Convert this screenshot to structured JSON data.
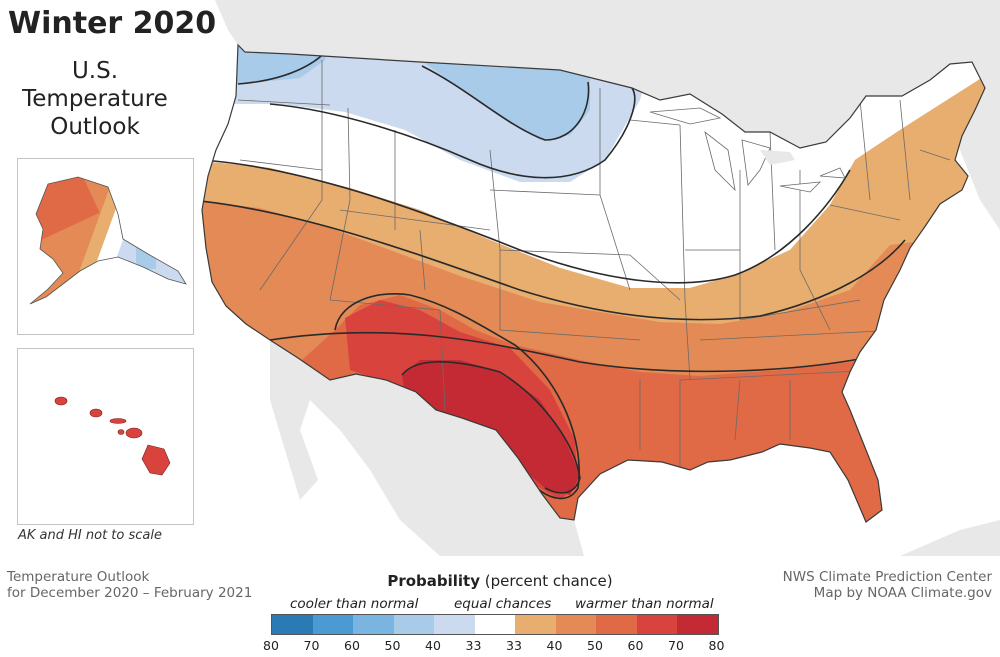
{
  "title": "Winter 2020",
  "subtitle_lines": [
    "U.S.",
    "Temperature",
    "Outlook"
  ],
  "inset_note": "AK and HI not to scale",
  "footer_left": [
    "Temperature Outlook",
    "for December 2020 – February 2021"
  ],
  "footer_right": [
    "NWS Climate Prediction Center",
    "Map by NOAA Climate.gov"
  ],
  "legend": {
    "title_bold": "Probability",
    "title_rest": " (percent chance)",
    "cooler_label": "cooler than normal",
    "equal_label": "equal chances",
    "warmer_label": "warmer than normal",
    "ticks": [
      "80",
      "70",
      "60",
      "50",
      "40",
      "33",
      "33",
      "40",
      "50",
      "60",
      "70",
      "80"
    ],
    "colors": [
      "#2a7ab5",
      "#4c9ad2",
      "#7ab4e1",
      "#a9cbea",
      "#cbdaef",
      "#ffffff",
      "#e8ae6f",
      "#e38a56",
      "#e06a46",
      "#d9433d",
      "#c42a33"
    ]
  },
  "map_colors": {
    "ocean": "#ffffff",
    "land_context": "#e8e8e8",
    "cool_40": "#cbdaef",
    "cool_50": "#a9cbea",
    "equal": "#ffffff",
    "warm_40": "#e8ae6f",
    "warm_50": "#e38a56",
    "warm_60": "#e06a46",
    "warm_70": "#d9433d",
    "warm_80": "#c42a33",
    "contour": "#2a2a2a",
    "state_border": "#6a6a6a"
  }
}
